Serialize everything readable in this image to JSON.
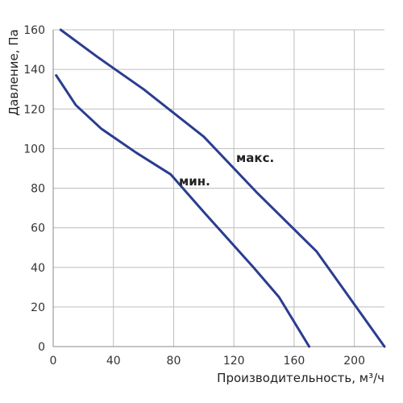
{
  "chart_data": {
    "type": "line",
    "xlabel": "Производительность, м³/ч",
    "ylabel": "Давление, Па",
    "xlim": [
      0,
      220
    ],
    "ylim": [
      0,
      160
    ],
    "xticks": [
      0,
      40,
      80,
      120,
      160,
      200
    ],
    "yticks": [
      0,
      20,
      40,
      60,
      80,
      100,
      120,
      140,
      160
    ],
    "grid": true,
    "line_color": "#2a3d8f",
    "series": [
      {
        "name": "макс.",
        "x": [
          5,
          30,
          60,
          100,
          135,
          175,
          220
        ],
        "y": [
          160,
          146,
          130,
          106,
          78,
          48,
          0
        ]
      },
      {
        "name": "мин.",
        "x": [
          2,
          15,
          32,
          55,
          78,
          100,
          133,
          150,
          170
        ],
        "y": [
          137,
          122,
          110,
          98,
          87,
          68,
          40,
          25,
          0
        ]
      }
    ]
  }
}
